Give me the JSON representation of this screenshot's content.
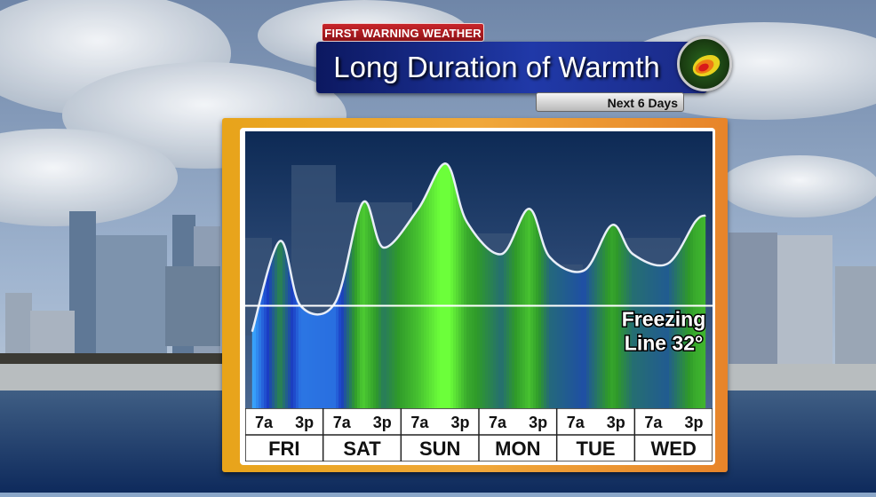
{
  "header": {
    "tag": "FIRST WARNING WEATHER",
    "title": "Long Duration of Warmth",
    "subtitle": "Next 6 Days"
  },
  "chart_data": {
    "type": "area",
    "title": "Long Duration of Warmth",
    "subtitle": "Next 6 Days",
    "days": [
      "FRI",
      "SAT",
      "SUN",
      "MON",
      "TUE",
      "WED"
    ],
    "times": [
      "7a",
      "3p"
    ],
    "tick_labels": [
      "7a",
      "3p",
      "7a",
      "3p",
      "7a",
      "3p",
      "7a",
      "3p",
      "7a",
      "3p",
      "7a",
      "3p"
    ],
    "reference_line": {
      "value": 32,
      "label_line1": "Freezing",
      "label_line2": "Line 32°"
    },
    "x_hours": [
      0,
      8,
      14,
      24,
      32,
      38,
      48,
      56,
      62,
      72,
      80,
      86,
      96,
      104,
      110,
      120,
      128,
      131
    ],
    "y_temps": [
      24,
      52,
      32,
      33,
      64,
      50,
      62,
      76,
      58,
      48,
      62,
      47,
      43,
      57,
      48,
      45,
      58,
      60
    ],
    "xlim": [
      -2,
      133
    ],
    "ylim": [
      0,
      86
    ],
    "grid": false,
    "colors": {
      "cold": "#1a3cc4",
      "cool": "#3aa8ff",
      "warm": "#2f9a2a",
      "hot": "#6cff3a",
      "line": "#e8eef8",
      "freeze_line": "#ffffff"
    }
  }
}
